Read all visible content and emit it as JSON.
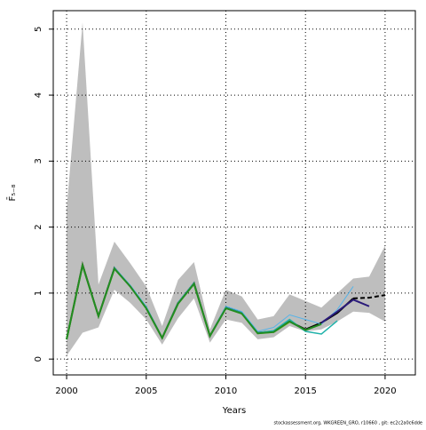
{
  "chart_data": {
    "type": "line",
    "x_label": "Years",
    "y_label": "F̄₅₋₈",
    "footnote": "stockassessment.org, WKGREEN_GRO, r10660 , git: ec2c2a0c6dde",
    "x": [
      2000,
      2001,
      2002,
      2003,
      2004,
      2005,
      2006,
      2007,
      2008,
      2009,
      2010,
      2011,
      2012,
      2013,
      2014,
      2015,
      2016,
      2017,
      2018,
      2019,
      2020
    ],
    "band": {
      "color": "#bebebe",
      "upper": [
        2.28,
        5.1,
        1.13,
        1.78,
        1.45,
        1.1,
        0.5,
        1.2,
        1.47,
        0.45,
        1.05,
        0.95,
        0.6,
        0.65,
        0.98,
        0.88,
        0.78,
        1.0,
        1.22,
        1.25,
        1.72
      ],
      "lower": [
        0.05,
        0.4,
        0.48,
        1.05,
        0.85,
        0.6,
        0.22,
        0.62,
        0.92,
        0.25,
        0.6,
        0.55,
        0.3,
        0.33,
        0.5,
        0.42,
        0.45,
        0.57,
        0.72,
        0.7,
        0.57
      ]
    },
    "series": [
      {
        "color": "#000000",
        "width": 2,
        "values": [
          0.3,
          1.43,
          0.65,
          1.38,
          1.1,
          0.78,
          0.32,
          0.85,
          1.15,
          0.35,
          0.78,
          0.7,
          0.4,
          0.42,
          0.57,
          0.45,
          0.55,
          0.7,
          0.92,
          null,
          null
        ]
      },
      {
        "color": "#9acd32",
        "width": 2,
        "values": [
          0.3,
          1.42,
          0.65,
          1.37,
          1.1,
          0.77,
          0.32,
          0.84,
          1.14,
          0.35,
          0.77,
          0.69,
          0.39,
          0.41,
          0.56,
          null,
          null,
          null,
          null,
          null,
          null
        ]
      },
      {
        "color": "#56b4e9",
        "width": 1,
        "values": [
          0.3,
          1.43,
          0.66,
          1.39,
          1.12,
          0.8,
          0.33,
          0.86,
          1.16,
          0.36,
          0.8,
          0.72,
          0.42,
          0.48,
          0.67,
          0.6,
          0.53,
          0.75,
          1.1,
          null,
          null
        ]
      },
      {
        "color": "#20b2aa",
        "width": 1.5,
        "values": [
          0.3,
          1.42,
          0.65,
          1.38,
          1.1,
          0.78,
          0.32,
          0.85,
          1.15,
          0.35,
          0.78,
          0.7,
          0.4,
          0.43,
          0.6,
          0.42,
          0.38,
          0.58,
          null,
          null,
          null
        ]
      },
      {
        "color": "#228b22",
        "width": 2,
        "values": [
          0.3,
          1.42,
          0.65,
          1.37,
          1.1,
          0.77,
          0.32,
          0.84,
          1.14,
          0.35,
          0.77,
          0.69,
          0.39,
          0.41,
          0.57,
          0.44,
          0.53,
          null,
          null,
          null,
          null
        ]
      },
      {
        "color": "#2a1a7a",
        "width": 2,
        "values": [
          null,
          null,
          null,
          null,
          null,
          null,
          null,
          null,
          null,
          null,
          null,
          null,
          null,
          null,
          null,
          null,
          0.55,
          0.72,
          0.9,
          0.8,
          null
        ]
      },
      {
        "color": "#000000",
        "width": 2,
        "dashed": true,
        "values": [
          null,
          null,
          null,
          null,
          null,
          null,
          null,
          null,
          null,
          null,
          null,
          null,
          null,
          null,
          null,
          null,
          null,
          null,
          0.92,
          0.93,
          0.97
        ]
      }
    ],
    "xlim": [
      1999.16,
      2021.9
    ],
    "ylim": [
      -0.24,
      5.28
    ],
    "xticks": [
      2000,
      2005,
      2010,
      2015,
      2020
    ],
    "yticks": [
      0,
      1,
      2,
      3,
      4,
      5
    ],
    "grid": true
  }
}
